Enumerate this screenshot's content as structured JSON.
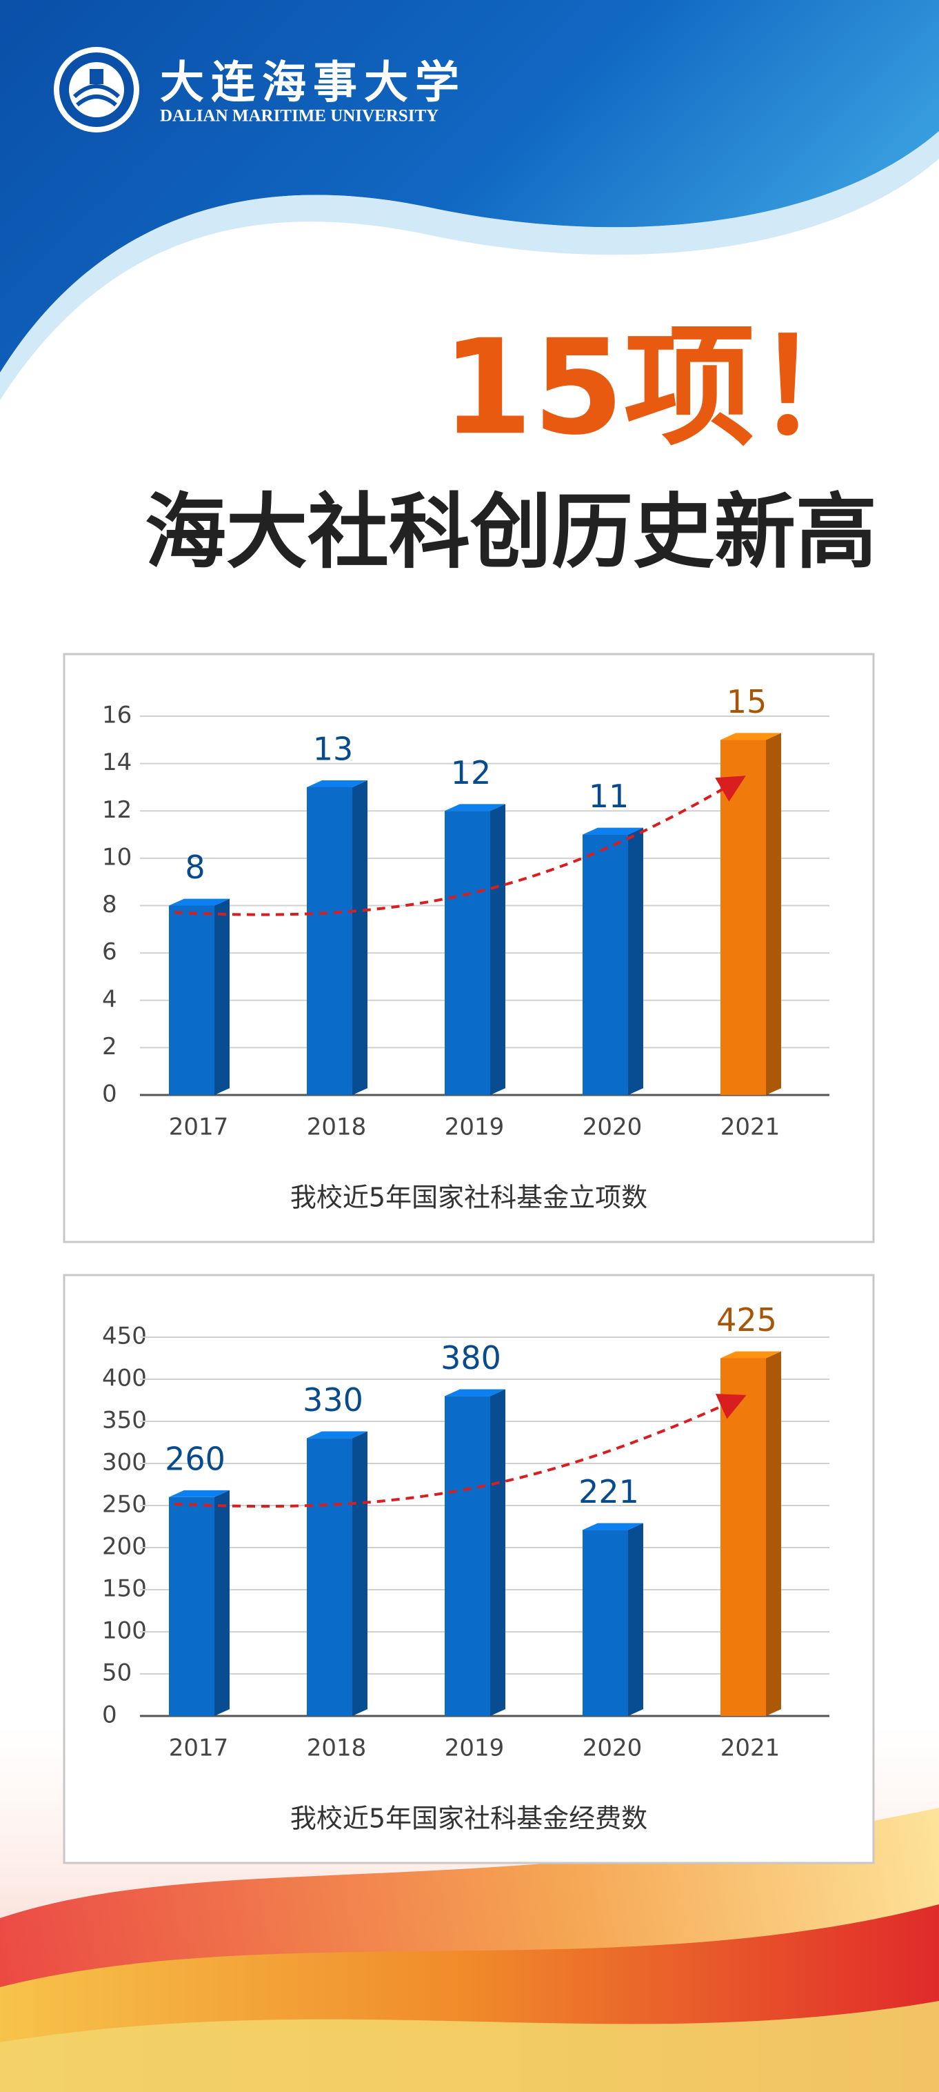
{
  "header": {
    "university_cn": "大连海事大学",
    "university_en": "DALIAN MARITIME UNIVERSITY"
  },
  "headline": {
    "count": "15项！",
    "subtitle": "海大社科创历史新高"
  },
  "chart_data": [
    {
      "type": "bar",
      "title": "我校近5年国家社科基金立项数",
      "categories": [
        "2017",
        "2018",
        "2019",
        "2020",
        "2021"
      ],
      "values": [
        8,
        13,
        12,
        11,
        15
      ],
      "colors": [
        "#0b6bc9",
        "#0b6bc9",
        "#0b6bc9",
        "#0b6bc9",
        "#f07a0c"
      ],
      "ylim": [
        0,
        16
      ],
      "yticks": [
        0,
        2,
        4,
        6,
        8,
        10,
        12,
        14,
        16
      ],
      "grid": true
    },
    {
      "type": "bar",
      "title": "我校近5年国家社科基金经费数",
      "categories": [
        "2017",
        "2018",
        "2019",
        "2020",
        "2021"
      ],
      "values": [
        260,
        330,
        380,
        221,
        425
      ],
      "colors": [
        "#0b6bc9",
        "#0b6bc9",
        "#0b6bc9",
        "#0b6bc9",
        "#f07a0c"
      ],
      "ylim": [
        0,
        450
      ],
      "yticks": [
        0,
        50,
        100,
        150,
        200,
        250,
        300,
        350,
        400,
        450
      ],
      "grid": true
    }
  ]
}
